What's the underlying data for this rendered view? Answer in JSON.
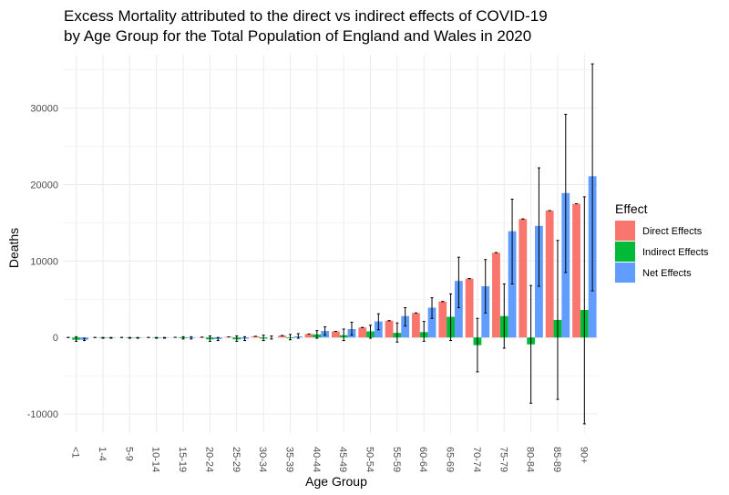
{
  "chart_data": {
    "type": "bar",
    "title_lines": [
      "Excess Mortality attributed to the direct vs indirect effects of COVID-19",
      "by Age Group for the Total Population of England and Wales in 2020"
    ],
    "xlabel": "Age Group",
    "ylabel": "Deaths",
    "ylim": [
      -12500,
      37000
    ],
    "yticks": [
      -10000,
      0,
      10000,
      20000,
      30000
    ],
    "ytick_labels": [
      "-10000",
      "0",
      "10000",
      "20000",
      "30000"
    ],
    "grid": true,
    "legend": {
      "title": "Effect",
      "position": "right"
    },
    "categories": [
      "<1",
      "1-4",
      "5-9",
      "10-14",
      "15-19",
      "20-24",
      "25-29",
      "30-34",
      "35-39",
      "40-44",
      "45-49",
      "50-54",
      "55-59",
      "60-64",
      "65-69",
      "70-74",
      "75-79",
      "80-84",
      "85-89",
      "90+"
    ],
    "series": [
      {
        "name": "Direct Effects",
        "color": "#F8766D",
        "values": [
          0,
          0,
          0,
          0,
          20,
          40,
          80,
          150,
          250,
          450,
          800,
          1300,
          2200,
          3200,
          4700,
          7700,
          11100,
          15500,
          16600,
          17500
        ],
        "err_low": [
          0,
          0,
          0,
          0,
          20,
          40,
          80,
          150,
          250,
          450,
          800,
          1300,
          2200,
          3200,
          4700,
          7700,
          11100,
          15500,
          16600,
          17500
        ],
        "err_high": [
          0,
          0,
          0,
          0,
          20,
          40,
          80,
          150,
          250,
          450,
          800,
          1300,
          2200,
          3200,
          4700,
          7700,
          11100,
          15500,
          16600,
          17500
        ]
      },
      {
        "name": "Indirect Effects",
        "color": "#00BA38",
        "values": [
          -300,
          -60,
          -60,
          -60,
          -100,
          -250,
          -250,
          -150,
          -100,
          400,
          300,
          800,
          600,
          700,
          2700,
          -1000,
          2800,
          -900,
          2300,
          3600
        ],
        "err_low": [
          -500,
          -100,
          -100,
          -100,
          -200,
          -500,
          -500,
          -400,
          -300,
          -100,
          -400,
          -100,
          -600,
          -500,
          -400,
          -4500,
          -1400,
          -8600,
          -8100,
          -11300
        ],
        "err_high": [
          100,
          0,
          0,
          0,
          100,
          200,
          200,
          300,
          400,
          900,
          1100,
          1600,
          1900,
          2100,
          5700,
          2500,
          7000,
          6800,
          12700,
          18400
        ]
      },
      {
        "name": "Net Effects",
        "color": "#619CFF",
        "values": [
          -300,
          -60,
          -60,
          -60,
          -80,
          -200,
          -170,
          0,
          150,
          850,
          1100,
          2100,
          2800,
          3900,
          7400,
          6700,
          13900,
          14600,
          18900,
          21100
        ],
        "err_low": [
          -400,
          -100,
          -100,
          -100,
          -200,
          -400,
          -400,
          -200,
          -100,
          300,
          300,
          1000,
          1500,
          2500,
          3900,
          3200,
          7000,
          6700,
          8500,
          6100
        ],
        "err_high": [
          -100,
          0,
          0,
          0,
          100,
          0,
          100,
          200,
          500,
          1400,
          2000,
          3100,
          3900,
          5200,
          10500,
          10200,
          18100,
          22200,
          29200,
          35800
        ]
      }
    ]
  }
}
